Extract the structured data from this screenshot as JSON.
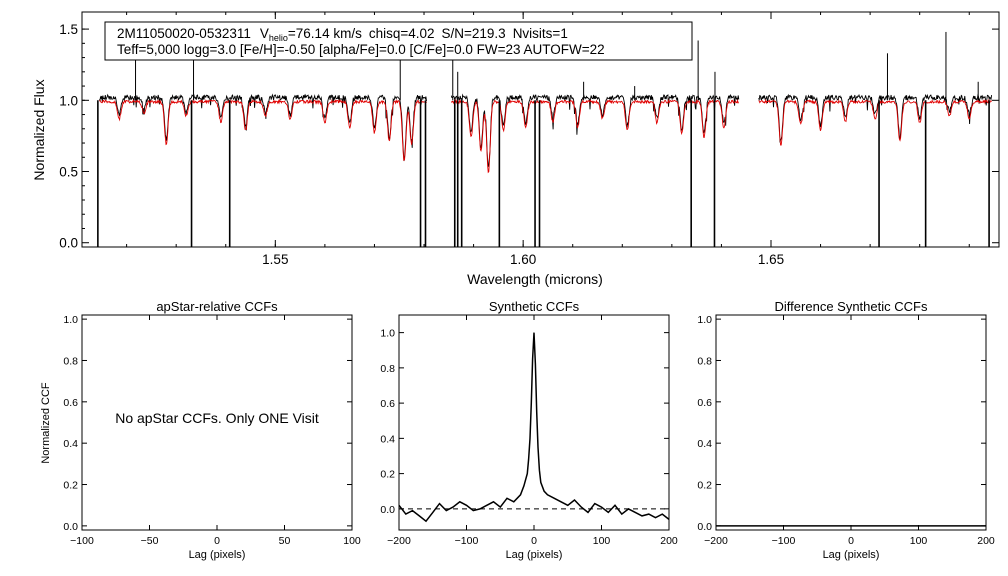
{
  "chart_data": [
    {
      "type": "line",
      "name": "spectrum",
      "header": {
        "star_id": "2M11050020-0532311",
        "vhelio_prefix": "V",
        "vhelio_sub": "helio",
        "vhelio_value": "=76.14 km/s",
        "chisq": "chisq=4.02",
        "sn": "S/N=219.3",
        "nvisits": "Nvisits=1",
        "params": "Teff=5,000 logg=3.0 [Fe/H]=-0.50 [alpha/Fe]=0.0 [C/Fe]=0.0 FW=23 AUTOFW=22"
      },
      "xlabel": "Wavelength (microns)",
      "ylabel": "Normalized Flux",
      "xlim": [
        1.511,
        1.696
      ],
      "ylim": [
        -0.03,
        1.62
      ],
      "xticks": [
        {
          "v": 1.55,
          "label": "1.55"
        },
        {
          "v": 1.6,
          "label": "1.60"
        },
        {
          "v": 1.65,
          "label": "1.65"
        }
      ],
      "yticks": [
        {
          "v": 0.0,
          "label": "0.0"
        },
        {
          "v": 0.5,
          "label": "0.5"
        },
        {
          "v": 1.0,
          "label": "1.0"
        },
        {
          "v": 1.5,
          "label": "1.5"
        }
      ],
      "chips": [
        [
          1.5145,
          1.5805
        ],
        [
          1.5855,
          1.6435
        ],
        [
          1.6475,
          1.6945
        ]
      ],
      "observed_color": "#000000",
      "model_color": "#e00000",
      "telluric_drops": [
        1.5142,
        1.5331,
        1.5408,
        1.5793,
        1.5803,
        1.5862,
        1.5868,
        1.5876,
        1.5952,
        1.6024,
        1.6033,
        1.6339,
        1.6386,
        1.6718,
        1.6812,
        1.694
      ],
      "emission_spikes": [
        {
          "x": 1.5218,
          "y": 1.35
        },
        {
          "x": 1.5335,
          "y": 1.48
        },
        {
          "x": 1.5752,
          "y": 1.37
        },
        {
          "x": 1.5858,
          "y": 1.45
        },
        {
          "x": 1.5868,
          "y": 1.2
        },
        {
          "x": 1.6122,
          "y": 1.13
        },
        {
          "x": 1.6225,
          "y": 1.1
        },
        {
          "x": 1.6353,
          "y": 1.42
        },
        {
          "x": 1.6387,
          "y": 1.2
        },
        {
          "x": 1.6735,
          "y": 1.33
        },
        {
          "x": 1.6853,
          "y": 1.48
        },
        {
          "x": 1.6918,
          "y": 1.13
        }
      ],
      "absorption_lines": [
        {
          "x": 1.5185,
          "d": 0.12
        },
        {
          "x": 1.5235,
          "d": 0.08
        },
        {
          "x": 1.528,
          "d": 0.3
        },
        {
          "x": 1.532,
          "d": 0.1
        },
        {
          "x": 1.539,
          "d": 0.14
        },
        {
          "x": 1.544,
          "d": 0.2
        },
        {
          "x": 1.548,
          "d": 0.1
        },
        {
          "x": 1.553,
          "d": 0.12
        },
        {
          "x": 1.56,
          "d": 0.15
        },
        {
          "x": 1.565,
          "d": 0.18
        },
        {
          "x": 1.57,
          "d": 0.22
        },
        {
          "x": 1.573,
          "d": 0.28
        },
        {
          "x": 1.576,
          "d": 0.42
        },
        {
          "x": 1.5775,
          "d": 0.3
        },
        {
          "x": 1.5895,
          "d": 0.25
        },
        {
          "x": 1.5915,
          "d": 0.35
        },
        {
          "x": 1.593,
          "d": 0.5
        },
        {
          "x": 1.596,
          "d": 0.2
        },
        {
          "x": 1.6005,
          "d": 0.18
        },
        {
          "x": 1.606,
          "d": 0.14
        },
        {
          "x": 1.611,
          "d": 0.18
        },
        {
          "x": 1.616,
          "d": 0.12
        },
        {
          "x": 1.621,
          "d": 0.2
        },
        {
          "x": 1.627,
          "d": 0.15
        },
        {
          "x": 1.632,
          "d": 0.22
        },
        {
          "x": 1.6365,
          "d": 0.25
        },
        {
          "x": 1.6405,
          "d": 0.18
        },
        {
          "x": 1.652,
          "d": 0.3
        },
        {
          "x": 1.656,
          "d": 0.16
        },
        {
          "x": 1.66,
          "d": 0.2
        },
        {
          "x": 1.665,
          "d": 0.14
        },
        {
          "x": 1.671,
          "d": 0.12
        },
        {
          "x": 1.676,
          "d": 0.28
        },
        {
          "x": 1.68,
          "d": 0.15
        },
        {
          "x": 1.686,
          "d": 0.1
        },
        {
          "x": 1.69,
          "d": 0.12
        }
      ]
    },
    {
      "type": "line",
      "name": "apstar-ccf",
      "title": "apStar-relative CCFs",
      "xlabel": "Lag (pixels)",
      "ylabel": "Normalized CCF",
      "xlim": [
        -100,
        100
      ],
      "ylim": [
        -0.02,
        1.02
      ],
      "xticks": [
        {
          "v": -100,
          "label": "-100"
        },
        {
          "v": -50,
          "label": "-50"
        },
        {
          "v": 0,
          "label": "0"
        },
        {
          "v": 50,
          "label": "50"
        },
        {
          "v": 100,
          "label": "100"
        }
      ],
      "yticks": [
        {
          "v": 0.0,
          "label": "0.0"
        },
        {
          "v": 0.2,
          "label": "0.2"
        },
        {
          "v": 0.4,
          "label": "0.4"
        },
        {
          "v": 0.6,
          "label": "0.6"
        },
        {
          "v": 0.8,
          "label": "0.8"
        },
        {
          "v": 1.0,
          "label": "1.0"
        }
      ],
      "message": "No apStar CCFs.  Only ONE Visit"
    },
    {
      "type": "line",
      "name": "synthetic-ccf",
      "title": "Synthetic CCFs",
      "xlabel": "Lag (pixels)",
      "xlim": [
        -200,
        200
      ],
      "ylim": [
        -0.12,
        1.1
      ],
      "xticks": [
        {
          "v": -200,
          "label": "-200"
        },
        {
          "v": -100,
          "label": "-100"
        },
        {
          "v": 0,
          "label": "0"
        },
        {
          "v": 100,
          "label": "100"
        },
        {
          "v": 200,
          "label": "200"
        }
      ],
      "yticks": [
        {
          "v": 0.0,
          "label": "0.0"
        },
        {
          "v": 0.2,
          "label": "0.2"
        },
        {
          "v": 0.4,
          "label": "0.4"
        },
        {
          "v": 0.6,
          "label": "0.6"
        },
        {
          "v": 0.8,
          "label": "0.8"
        },
        {
          "v": 1.0,
          "label": "1.0"
        }
      ],
      "reference_line_y": 0.0,
      "x": [
        -200,
        -190,
        -180,
        -170,
        -160,
        -150,
        -140,
        -130,
        -120,
        -110,
        -100,
        -90,
        -80,
        -70,
        -60,
        -50,
        -40,
        -30,
        -20,
        -15,
        -10,
        -8,
        -6,
        -4,
        -2,
        0,
        2,
        4,
        6,
        8,
        10,
        15,
        20,
        30,
        40,
        50,
        60,
        70,
        80,
        90,
        100,
        110,
        120,
        130,
        140,
        150,
        160,
        170,
        180,
        190,
        200
      ],
      "y": [
        0.02,
        -0.03,
        -0.01,
        -0.04,
        -0.07,
        -0.02,
        0.03,
        -0.01,
        0.01,
        0.04,
        0.02,
        -0.01,
        0.0,
        0.02,
        0.04,
        0.01,
        0.06,
        0.04,
        0.08,
        0.13,
        0.2,
        0.28,
        0.4,
        0.6,
        0.85,
        1.0,
        0.82,
        0.55,
        0.35,
        0.22,
        0.15,
        0.1,
        0.08,
        0.06,
        0.04,
        0.02,
        0.05,
        0.01,
        -0.02,
        0.03,
        0.01,
        -0.02,
        0.02,
        -0.03,
        0.0,
        -0.02,
        -0.04,
        -0.03,
        -0.05,
        -0.03,
        -0.06
      ]
    },
    {
      "type": "line",
      "name": "difference-ccf",
      "title": "Difference Synthetic CCFs",
      "xlabel": "Lag (pixels)",
      "xlim": [
        -200,
        200
      ],
      "ylim": [
        -0.02,
        1.02
      ],
      "xticks": [
        {
          "v": -200,
          "label": "-200"
        },
        {
          "v": -100,
          "label": "-100"
        },
        {
          "v": 0,
          "label": "0"
        },
        {
          "v": 100,
          "label": "100"
        },
        {
          "v": 200,
          "label": "200"
        }
      ],
      "yticks": [
        {
          "v": 0.0,
          "label": "0.0"
        },
        {
          "v": 0.2,
          "label": "0.2"
        },
        {
          "v": 0.4,
          "label": "0.4"
        },
        {
          "v": 0.6,
          "label": "0.6"
        },
        {
          "v": 0.8,
          "label": "0.8"
        },
        {
          "v": 1.0,
          "label": "1.0"
        }
      ],
      "x": [
        -200,
        200
      ],
      "y": [
        0.0,
        0.0
      ]
    }
  ]
}
